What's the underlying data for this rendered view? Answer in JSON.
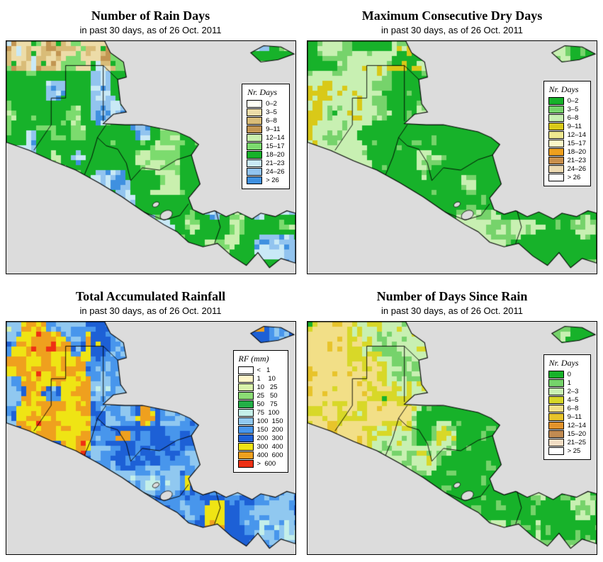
{
  "figure": {
    "region": "Central America",
    "background": "#FFFFFF",
    "sea_color": "#DCDCDC",
    "coast_color": "#000000"
  },
  "panels": [
    {
      "title": "Number of Rain Days",
      "subtitle": "in past 30 days, as of 26 Oct. 2011",
      "legend": {
        "title": "Nr. Days",
        "entries": [
          {
            "label": "0–2",
            "color": "#FFFFF4"
          },
          {
            "label": "3–5",
            "color": "#EDDCA8"
          },
          {
            "label": "6–8",
            "color": "#D9BC78"
          },
          {
            "label": "9–11",
            "color": "#C29552"
          },
          {
            "label": "12–14",
            "color": "#C9F0AE"
          },
          {
            "label": "15–17",
            "color": "#7CDB6E"
          },
          {
            "label": "18–20",
            "color": "#17B22A"
          },
          {
            "label": "21–23",
            "color": "#C9E9F6"
          },
          {
            "label": "24–26",
            "color": "#92C4EF"
          },
          {
            "label": "> 26",
            "color": "#3F90E0"
          }
        ]
      }
    },
    {
      "title": "Maximum Consecutive Dry Days",
      "subtitle": "in past 30 days, as of 26 Oct. 2011",
      "legend": {
        "title": "Nr. Days",
        "entries": [
          {
            "label": "0–2",
            "color": "#17B22A"
          },
          {
            "label": "3–5",
            "color": "#76D36B"
          },
          {
            "label": "6–8",
            "color": "#C8F0B2"
          },
          {
            "label": "9–11",
            "color": "#D9C918"
          },
          {
            "label": "12–14",
            "color": "#EFE890"
          },
          {
            "label": "15–17",
            "color": "#FBF7C6"
          },
          {
            "label": "18–20",
            "color": "#EFA01E"
          },
          {
            "label": "21–23",
            "color": "#C98F4C"
          },
          {
            "label": "24–26",
            "color": "#EDDAB2"
          },
          {
            "label": "> 26",
            "color": "#FFFFFF"
          }
        ]
      }
    },
    {
      "title": "Total Accumulated Rainfall",
      "subtitle": "in past 30 days, as of 26 Oct. 2011",
      "legend": {
        "title": "RF (mm)",
        "entries": [
          {
            "label": "<   1",
            "color": "#FFFFFF"
          },
          {
            "label": "1    10",
            "color": "#FFF6C9"
          },
          {
            "label": "10   25",
            "color": "#D8F2AA"
          },
          {
            "label": "25   50",
            "color": "#8BDC74"
          },
          {
            "label": "50   75",
            "color": "#23AF47"
          },
          {
            "label": "75  100",
            "color": "#C4EFE9"
          },
          {
            "label": "100  150",
            "color": "#90C8F0"
          },
          {
            "label": "150  200",
            "color": "#4896EC"
          },
          {
            "label": "200  300",
            "color": "#1D60D6"
          },
          {
            "label": "300  400",
            "color": "#EFE414"
          },
          {
            "label": "400  600",
            "color": "#EFA01E"
          },
          {
            "label": ">  600",
            "color": "#EE3014"
          }
        ]
      }
    },
    {
      "title": "Number of Days Since Rain",
      "subtitle": "in past 30 days, as of 26 Oct. 2011",
      "legend": {
        "title": "Nr. Days",
        "entries": [
          {
            "label": "0",
            "color": "#17B22A"
          },
          {
            "label": "1",
            "color": "#76D36B"
          },
          {
            "label": "2–3",
            "color": "#C8F0B2"
          },
          {
            "label": "4–5",
            "color": "#D8D828"
          },
          {
            "label": "6–8",
            "color": "#F2DF87"
          },
          {
            "label": "9–11",
            "color": "#E8C42B"
          },
          {
            "label": "12–14",
            "color": "#E2932B"
          },
          {
            "label": "15–20",
            "color": "#C18B52"
          },
          {
            "label": "21–25",
            "color": "#F2DDC4"
          },
          {
            "label": "> 25",
            "color": "#FFFFFF"
          }
        ]
      }
    }
  ]
}
